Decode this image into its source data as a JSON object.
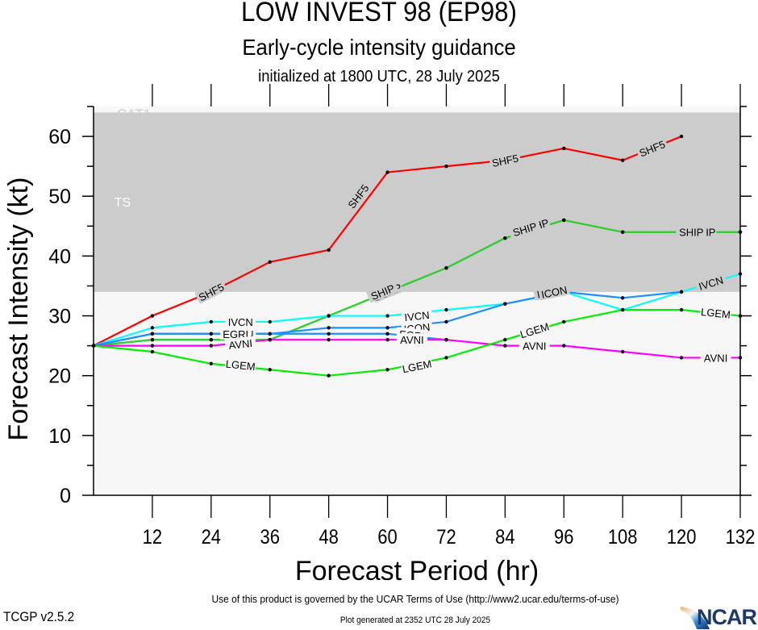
{
  "header": {
    "title": "LOW INVEST 98 (EP98)",
    "subtitle": "Early-cycle intensity guidance",
    "init": "initialized at 1800 UTC, 28 July 2025"
  },
  "footer": {
    "terms": "Use of this product is governed by the UCAR Terms of Use (http://www2.ucar.edu/terms-of-use)",
    "generated": "Plot generated at 2352 UTC   28 July 2025",
    "version": "TCGP v2.5.2",
    "logo": "NCAR"
  },
  "chart_data": {
    "type": "line",
    "title": "LOW INVEST 98 (EP98)",
    "xlabel": "Forecast Period (hr)",
    "ylabel": "Forecast Intensity (kt)",
    "xlim": [
      0,
      132
    ],
    "ylim": [
      0,
      65
    ],
    "xticks": [
      12,
      24,
      36,
      48,
      60,
      72,
      84,
      96,
      108,
      120,
      132
    ],
    "yticks": [
      0,
      10,
      20,
      30,
      40,
      50,
      60
    ],
    "bands": [
      {
        "label": "TS",
        "from": 34,
        "to": 64,
        "color": "#cccccc"
      },
      {
        "label": "CAT1",
        "from": 64,
        "to": 65,
        "color": "#f7f7f7"
      }
    ],
    "background_color": "#f7f7f7",
    "series": [
      {
        "name": "SHF5",
        "color": "#ff0000",
        "x": [
          0,
          12,
          24,
          36,
          48,
          60,
          72,
          84,
          96,
          108,
          120
        ],
        "y": [
          25,
          30,
          34,
          39,
          41,
          54,
          55,
          56,
          58,
          56,
          60
        ],
        "labels_at": [
          [
            24,
            34
          ],
          [
            54,
            50
          ],
          [
            84,
            56
          ],
          [
            114,
            58
          ]
        ]
      },
      {
        "name": "DSHP",
        "color": "#33cc33",
        "x": [
          0,
          12,
          24,
          36,
          48,
          60,
          72,
          84,
          96,
          108,
          120,
          132
        ],
        "y": [
          25,
          26,
          26,
          26,
          30,
          34,
          38,
          43,
          46,
          44,
          44,
          44
        ],
        "labels_at": [
          [
            60,
            34
          ],
          [
            90,
            45
          ],
          [
            124,
            44
          ]
        ]
      },
      {
        "name": "SHIP",
        "color": "#33cc33",
        "x": [
          0,
          12,
          24,
          36,
          48,
          60,
          72,
          84,
          96,
          108,
          120,
          132
        ],
        "y": [
          25,
          26,
          26,
          26,
          30,
          34,
          38,
          43,
          46,
          44,
          44,
          44
        ],
        "labels_at": [
          [
            59,
            34
          ],
          [
            88,
            44.5
          ],
          [
            122,
            44
          ]
        ]
      },
      {
        "name": "IVCN",
        "color": "#00ffff",
        "x": [
          0,
          12,
          24,
          36,
          48,
          60,
          72,
          84,
          96,
          108,
          120,
          132
        ],
        "y": [
          25,
          28,
          29,
          29,
          30,
          30,
          31,
          32,
          34,
          31,
          34,
          37
        ],
        "labels_at": [
          [
            30,
            29
          ],
          [
            66,
            30
          ],
          [
            93,
            34
          ],
          [
            126,
            35.5
          ]
        ]
      },
      {
        "name": "ICON",
        "color": "#1e90ff",
        "x": [
          0,
          12,
          24,
          36,
          48,
          60,
          72,
          84,
          96,
          108,
          120
        ],
        "y": [
          25,
          27,
          27,
          27,
          28,
          28,
          29,
          32,
          34,
          33,
          34
        ],
        "labels_at": [
          [
            30,
            27
          ],
          [
            66,
            28
          ],
          [
            94,
            34
          ]
        ]
      },
      {
        "name": "EGRI",
        "color": "#1e90ff",
        "x": [
          0,
          12,
          24,
          36,
          48,
          60,
          72
        ],
        "y": [
          25,
          27,
          27,
          27,
          27,
          27,
          26
        ],
        "labels_at": [
          [
            29,
            27
          ],
          [
            65,
            26.8
          ]
        ]
      },
      {
        "name": "AVNI",
        "color": "#ff00ff",
        "x": [
          0,
          12,
          24,
          36,
          48,
          60,
          72,
          84,
          96,
          108,
          120,
          132
        ],
        "y": [
          25,
          25,
          25,
          26,
          26,
          26,
          26,
          25,
          25,
          24,
          23,
          23
        ],
        "labels_at": [
          [
            30,
            25.3
          ],
          [
            65,
            26
          ],
          [
            90,
            25
          ],
          [
            127,
            23
          ]
        ]
      },
      {
        "name": "LGEM",
        "color": "#00ee00",
        "x": [
          0,
          12,
          24,
          36,
          48,
          60,
          72,
          84,
          96,
          108,
          120,
          132
        ],
        "y": [
          25,
          24,
          22,
          21,
          20,
          21,
          23,
          26,
          29,
          31,
          31,
          30
        ],
        "labels_at": [
          [
            30,
            21.8
          ],
          [
            66,
            21.6
          ],
          [
            90,
            27.6
          ],
          [
            127,
            30.5
          ]
        ]
      }
    ]
  }
}
